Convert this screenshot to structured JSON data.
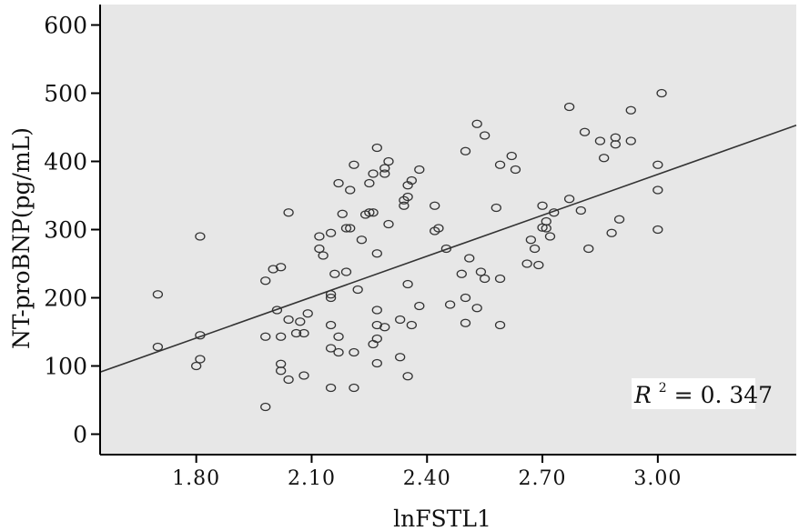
{
  "chart_data": {
    "type": "scatter",
    "title": "",
    "xlabel": "lnFSTL1",
    "ylabel": "NT-proBNP(pg/mL)",
    "xlim": [
      1.55,
      3.36
    ],
    "ylim": [
      -30,
      630
    ],
    "xticks": [
      "1.80",
      "2.10",
      "2.40",
      "2.70",
      "3.00"
    ],
    "yticks": [
      "0",
      "100",
      "200",
      "300",
      "400",
      "500",
      "600"
    ],
    "colors": {
      "background": "#e7e7e7",
      "points": "#333333",
      "line": "#333333",
      "axis": "#000000"
    },
    "annotation": {
      "r_symbol": "R",
      "superscript": "2",
      "equals": " =",
      "value": "0. 347"
    },
    "fit_line": {
      "x": [
        1.55,
        3.36
      ],
      "y": [
        91,
        453
      ]
    },
    "points": [
      {
        "x": 1.7,
        "y": 205
      },
      {
        "x": 1.7,
        "y": 128
      },
      {
        "x": 1.81,
        "y": 290
      },
      {
        "x": 1.81,
        "y": 145
      },
      {
        "x": 1.81,
        "y": 110
      },
      {
        "x": 1.8,
        "y": 100
      },
      {
        "x": 1.98,
        "y": 225
      },
      {
        "x": 1.98,
        "y": 143
      },
      {
        "x": 1.98,
        "y": 40
      },
      {
        "x": 2.0,
        "y": 242
      },
      {
        "x": 2.01,
        "y": 182
      },
      {
        "x": 2.02,
        "y": 245
      },
      {
        "x": 2.02,
        "y": 143
      },
      {
        "x": 2.02,
        "y": 103
      },
      {
        "x": 2.02,
        "y": 93
      },
      {
        "x": 2.04,
        "y": 325
      },
      {
        "x": 2.04,
        "y": 168
      },
      {
        "x": 2.04,
        "y": 80
      },
      {
        "x": 2.06,
        "y": 148
      },
      {
        "x": 2.07,
        "y": 165
      },
      {
        "x": 2.08,
        "y": 148
      },
      {
        "x": 2.09,
        "y": 177
      },
      {
        "x": 2.08,
        "y": 86
      },
      {
        "x": 2.12,
        "y": 290
      },
      {
        "x": 2.12,
        "y": 272
      },
      {
        "x": 2.13,
        "y": 262
      },
      {
        "x": 2.15,
        "y": 295
      },
      {
        "x": 2.15,
        "y": 205
      },
      {
        "x": 2.15,
        "y": 200
      },
      {
        "x": 2.15,
        "y": 160
      },
      {
        "x": 2.15,
        "y": 126
      },
      {
        "x": 2.15,
        "y": 68
      },
      {
        "x": 2.16,
        "y": 235
      },
      {
        "x": 2.17,
        "y": 368
      },
      {
        "x": 2.17,
        "y": 143
      },
      {
        "x": 2.17,
        "y": 120
      },
      {
        "x": 2.18,
        "y": 323
      },
      {
        "x": 2.19,
        "y": 302
      },
      {
        "x": 2.19,
        "y": 238
      },
      {
        "x": 2.2,
        "y": 358
      },
      {
        "x": 2.2,
        "y": 302
      },
      {
        "x": 2.21,
        "y": 395
      },
      {
        "x": 2.21,
        "y": 120
      },
      {
        "x": 2.21,
        "y": 68
      },
      {
        "x": 2.22,
        "y": 212
      },
      {
        "x": 2.23,
        "y": 285
      },
      {
        "x": 2.24,
        "y": 322
      },
      {
        "x": 2.25,
        "y": 368
      },
      {
        "x": 2.25,
        "y": 325
      },
      {
        "x": 2.26,
        "y": 382
      },
      {
        "x": 2.26,
        "y": 325
      },
      {
        "x": 2.26,
        "y": 132
      },
      {
        "x": 2.27,
        "y": 420
      },
      {
        "x": 2.27,
        "y": 265
      },
      {
        "x": 2.27,
        "y": 182
      },
      {
        "x": 2.27,
        "y": 160
      },
      {
        "x": 2.27,
        "y": 140
      },
      {
        "x": 2.27,
        "y": 104
      },
      {
        "x": 2.29,
        "y": 390
      },
      {
        "x": 2.29,
        "y": 382
      },
      {
        "x": 2.29,
        "y": 157
      },
      {
        "x": 2.3,
        "y": 400
      },
      {
        "x": 2.3,
        "y": 308
      },
      {
        "x": 2.33,
        "y": 168
      },
      {
        "x": 2.33,
        "y": 113
      },
      {
        "x": 2.34,
        "y": 343
      },
      {
        "x": 2.34,
        "y": 335
      },
      {
        "x": 2.35,
        "y": 365
      },
      {
        "x": 2.35,
        "y": 348
      },
      {
        "x": 2.35,
        "y": 220
      },
      {
        "x": 2.36,
        "y": 372
      },
      {
        "x": 2.36,
        "y": 160
      },
      {
        "x": 2.35,
        "y": 85
      },
      {
        "x": 2.38,
        "y": 388
      },
      {
        "x": 2.38,
        "y": 188
      },
      {
        "x": 2.42,
        "y": 335
      },
      {
        "x": 2.42,
        "y": 298
      },
      {
        "x": 2.43,
        "y": 302
      },
      {
        "x": 2.45,
        "y": 272
      },
      {
        "x": 2.46,
        "y": 190
      },
      {
        "x": 2.49,
        "y": 235
      },
      {
        "x": 2.5,
        "y": 415
      },
      {
        "x": 2.5,
        "y": 200
      },
      {
        "x": 2.5,
        "y": 163
      },
      {
        "x": 2.51,
        "y": 258
      },
      {
        "x": 2.53,
        "y": 455
      },
      {
        "x": 2.53,
        "y": 185
      },
      {
        "x": 2.54,
        "y": 238
      },
      {
        "x": 2.55,
        "y": 438
      },
      {
        "x": 2.55,
        "y": 228
      },
      {
        "x": 2.58,
        "y": 332
      },
      {
        "x": 2.59,
        "y": 395
      },
      {
        "x": 2.59,
        "y": 228
      },
      {
        "x": 2.59,
        "y": 160
      },
      {
        "x": 2.62,
        "y": 408
      },
      {
        "x": 2.63,
        "y": 388
      },
      {
        "x": 2.66,
        "y": 250
      },
      {
        "x": 2.67,
        "y": 285
      },
      {
        "x": 2.68,
        "y": 272
      },
      {
        "x": 2.69,
        "y": 248
      },
      {
        "x": 2.7,
        "y": 335
      },
      {
        "x": 2.7,
        "y": 303
      },
      {
        "x": 2.71,
        "y": 312
      },
      {
        "x": 2.71,
        "y": 302
      },
      {
        "x": 2.72,
        "y": 290
      },
      {
        "x": 2.73,
        "y": 325
      },
      {
        "x": 2.77,
        "y": 345
      },
      {
        "x": 2.77,
        "y": 480
      },
      {
        "x": 2.8,
        "y": 328
      },
      {
        "x": 2.81,
        "y": 443
      },
      {
        "x": 2.82,
        "y": 272
      },
      {
        "x": 2.85,
        "y": 430
      },
      {
        "x": 2.86,
        "y": 405
      },
      {
        "x": 2.88,
        "y": 295
      },
      {
        "x": 2.89,
        "y": 435
      },
      {
        "x": 2.89,
        "y": 425
      },
      {
        "x": 2.9,
        "y": 315
      },
      {
        "x": 2.93,
        "y": 475
      },
      {
        "x": 2.93,
        "y": 430
      },
      {
        "x": 3.0,
        "y": 395
      },
      {
        "x": 3.0,
        "y": 358
      },
      {
        "x": 3.0,
        "y": 300
      },
      {
        "x": 3.01,
        "y": 500
      }
    ]
  }
}
